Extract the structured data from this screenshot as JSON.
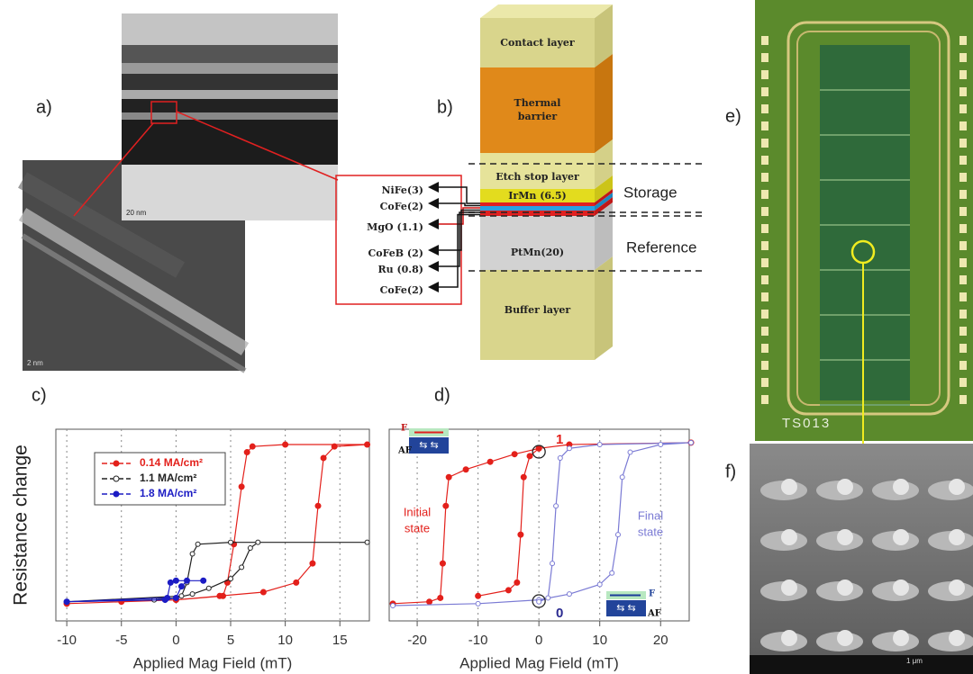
{
  "panels": {
    "a": "a)",
    "b": "b)",
    "c": "c)",
    "d": "d)",
    "e": "e)",
    "f": "f)"
  },
  "micrograph": {
    "scale_top": "20 nm",
    "scale_bottom": "2 nm"
  },
  "stack": {
    "contact": "Contact layer",
    "thermal_barrier": [
      "Thermal",
      "barrier"
    ],
    "etch_stop": "Etch stop layer",
    "irmn": "IrMn (6.5)",
    "ptmn": "PtMn(20)",
    "buffer": "Buffer layer",
    "zoom": [
      "NiFe(3)",
      "CoFe(2)",
      "MgO (1.1)",
      "CoFeB (2)",
      "Ru (0.8)",
      "CoFe(2)"
    ],
    "storage": "Storage",
    "reference": "Reference"
  },
  "chip": {
    "label": "TS013"
  },
  "sem": {
    "scale": "1 μm"
  },
  "chart_data": [
    {
      "type": "line",
      "ylabel": "Resistance change",
      "xlabel": "Applied Mag Field (mT)",
      "xlim": [
        -11,
        17.7
      ],
      "ylim": [
        0,
        1
      ],
      "xticks": [
        -10,
        -5,
        0,
        5,
        10,
        15
      ],
      "grid": true,
      "legend": "upper left",
      "series": [
        {
          "name": "0.14 MA/cm²",
          "color": "#e3201b",
          "marker": "filled",
          "x": [
            -10,
            -5,
            0,
            4,
            8,
            11,
            12.5,
            13,
            13.5,
            14.5,
            17.5,
            10,
            7,
            6.5,
            6,
            5.3,
            4.7,
            4.3,
            0,
            -10
          ],
          "values": [
            0.09,
            0.1,
            0.11,
            0.13,
            0.15,
            0.2,
            0.3,
            0.6,
            0.85,
            0.91,
            0.92,
            0.92,
            0.91,
            0.88,
            0.7,
            0.4,
            0.2,
            0.13,
            0.11,
            0.09
          ]
        },
        {
          "name": "1.1 MA/cm²",
          "color": "#222222",
          "marker": "open",
          "x": [
            -10,
            -2,
            0,
            1.5,
            3,
            5,
            6,
            6.8,
            7.5,
            17.5,
            5,
            2,
            1.5,
            1,
            0.5,
            -10
          ],
          "values": [
            0.1,
            0.11,
            0.12,
            0.14,
            0.17,
            0.22,
            0.28,
            0.38,
            0.41,
            0.41,
            0.41,
            0.4,
            0.35,
            0.2,
            0.13,
            0.1
          ]
        },
        {
          "name": "1.8 MA/cm²",
          "color": "#1c1cc4",
          "marker": "filled",
          "x": [
            -10,
            -1,
            0,
            0.5,
            1,
            2.5,
            0,
            -0.5,
            -0.8,
            -10
          ],
          "values": [
            0.1,
            0.11,
            0.12,
            0.18,
            0.21,
            0.21,
            0.21,
            0.2,
            0.12,
            0.1
          ]
        }
      ]
    },
    {
      "type": "line",
      "xlabel": "Applied Mag Field (mT)",
      "xlim": [
        -24.6,
        24.7
      ],
      "ylim": [
        0,
        1
      ],
      "xticks": [
        -20,
        -10,
        0,
        10,
        20
      ],
      "grid": true,
      "initial_state": [
        "Initial",
        "state"
      ],
      "final_state": [
        "Final",
        "state"
      ],
      "state_one": "1",
      "state_zero": "0",
      "inset_top": {
        "f": "F",
        "af": "AF"
      },
      "inset_bottom": {
        "f": "F",
        "af": "AF"
      },
      "series": [
        {
          "color": "#e3201b",
          "marker": "filled",
          "x": [
            -24,
            -18,
            -16.2,
            -15.8,
            -15.3,
            -14.8,
            -12,
            -8,
            -4,
            0,
            5,
            25,
            null,
            -10,
            -5,
            -3.6,
            -3,
            -2.5,
            -1.5,
            0
          ],
          "values": [
            0.09,
            0.1,
            0.12,
            0.3,
            0.6,
            0.75,
            0.79,
            0.83,
            0.87,
            0.9,
            0.92,
            0.93,
            null,
            0.13,
            0.16,
            0.2,
            0.45,
            0.75,
            0.86,
            0.9
          ]
        },
        {
          "color": "#7a7ad4",
          "marker": "open",
          "x": [
            -24,
            -10,
            0,
            5,
            10,
            12,
            13,
            13.7,
            15,
            20,
            25,
            null,
            25,
            10,
            5,
            3.5,
            2.8,
            2.2,
            1.5,
            0
          ],
          "values": [
            0.08,
            0.09,
            0.11,
            0.14,
            0.19,
            0.25,
            0.45,
            0.75,
            0.88,
            0.92,
            0.93,
            null,
            0.93,
            0.92,
            0.9,
            0.85,
            0.6,
            0.3,
            0.12,
            0.1
          ]
        }
      ]
    }
  ]
}
